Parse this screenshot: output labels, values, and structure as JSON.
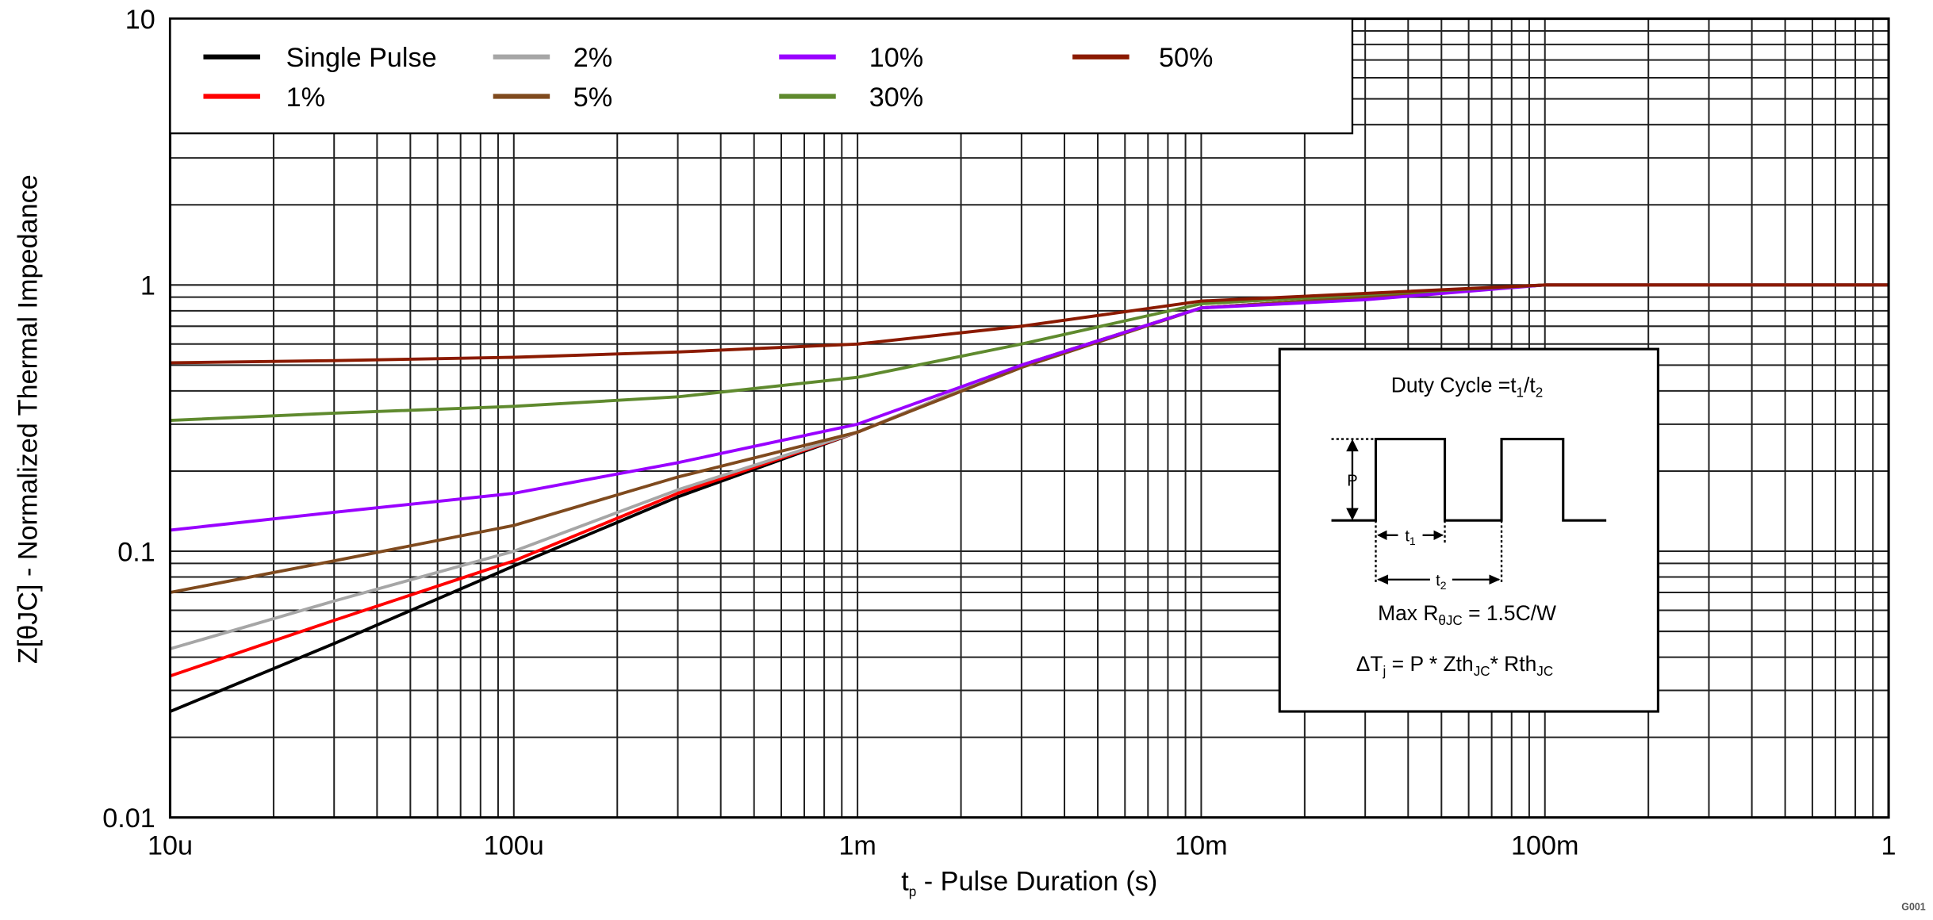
{
  "chart_data": {
    "type": "line",
    "xscale": "log",
    "yscale": "log",
    "xlim": [
      1e-05,
      1
    ],
    "ylim": [
      0.01,
      10
    ],
    "grid": true,
    "legend_placement": "top-left",
    "xlabel_main": "t",
    "xlabel_sub": "p",
    "xlabel_rest": " - Pulse Duration (s)",
    "ylabel": "Z[θJC] - Normalized Thermal Impedance",
    "xticks": [
      {
        "v": 1e-05,
        "label": "10u"
      },
      {
        "v": 0.0001,
        "label": "100u"
      },
      {
        "v": 0.001,
        "label": "1m"
      },
      {
        "v": 0.01,
        "label": "10m"
      },
      {
        "v": 0.1,
        "label": "100m"
      },
      {
        "v": 1,
        "label": "1"
      }
    ],
    "yticks": [
      {
        "v": 0.01,
        "label": "0.01"
      },
      {
        "v": 0.1,
        "label": "0.1"
      },
      {
        "v": 1,
        "label": "1"
      },
      {
        "v": 10,
        "label": "10"
      }
    ],
    "corner_code": "G001",
    "series": [
      {
        "name": "Single Pulse",
        "color": "#000000",
        "x": [
          1e-05,
          3e-05,
          0.0001,
          0.0003,
          0.001,
          0.003,
          0.01,
          0.03,
          0.1,
          1
        ],
        "y": [
          0.025,
          0.045,
          0.088,
          0.16,
          0.28,
          0.5,
          0.82,
          0.9,
          1.0,
          1.0
        ]
      },
      {
        "name": "1%",
        "color": "#ff0000",
        "x": [
          1e-05,
          3e-05,
          0.0001,
          0.0003,
          0.001,
          0.003,
          0.01,
          0.03,
          0.1,
          1
        ],
        "y": [
          0.034,
          0.055,
          0.092,
          0.165,
          0.28,
          0.5,
          0.82,
          0.9,
          1.0,
          1.0
        ]
      },
      {
        "name": "2%",
        "color": "#a6a6a6",
        "x": [
          1e-05,
          3e-05,
          0.0001,
          0.0003,
          0.001,
          0.003,
          0.01,
          0.03,
          0.1,
          1
        ],
        "y": [
          0.043,
          0.065,
          0.1,
          0.17,
          0.28,
          0.5,
          0.82,
          0.9,
          1.0,
          1.0
        ]
      },
      {
        "name": "5%",
        "color": "#7f4a1e",
        "x": [
          1e-05,
          3e-05,
          0.0001,
          0.0003,
          0.001,
          0.003,
          0.01,
          0.03,
          0.1,
          1
        ],
        "y": [
          0.07,
          0.092,
          0.125,
          0.19,
          0.28,
          0.49,
          0.82,
          0.9,
          1.0,
          1.0
        ]
      },
      {
        "name": "10%",
        "color": "#9900ff",
        "x": [
          1e-05,
          3e-05,
          0.0001,
          0.0003,
          0.001,
          0.003,
          0.01,
          0.03,
          0.1,
          1
        ],
        "y": [
          0.12,
          0.14,
          0.165,
          0.215,
          0.3,
          0.5,
          0.82,
          0.88,
          1.0,
          1.0
        ]
      },
      {
        "name": "30%",
        "color": "#5f8a2e",
        "x": [
          1e-05,
          3e-05,
          0.0001,
          0.0003,
          0.001,
          0.003,
          0.01,
          0.03,
          0.1,
          1
        ],
        "y": [
          0.31,
          0.33,
          0.35,
          0.38,
          0.45,
          0.6,
          0.85,
          0.92,
          1.0,
          1.0
        ]
      },
      {
        "name": "50%",
        "color": "#8b1a00",
        "x": [
          1e-05,
          3e-05,
          0.0001,
          0.0003,
          0.001,
          0.003,
          0.01,
          0.03,
          0.1,
          1
        ],
        "y": [
          0.51,
          0.52,
          0.535,
          0.56,
          0.6,
          0.7,
          0.87,
          0.93,
          1.0,
          1.0
        ]
      }
    ],
    "inset": {
      "title_main": "Duty Cycle =t",
      "title_sub1": "1",
      "title_mid": "/t",
      "title_sub2": "2",
      "p_label": "P",
      "t1_main": "t",
      "t1_sub": "1",
      "t2_main": "t",
      "t2_sub": "2",
      "rmax_main": "Max R",
      "rmax_sub": "θJC",
      "rmax_rest": " = 1.5C/W",
      "dt_a": "ΔT",
      "dt_a_sub": "j",
      "dt_b": " = P * Zth",
      "dt_b_sub": "JC",
      "dt_c": "* Rth",
      "dt_c_sub": "JC"
    }
  }
}
